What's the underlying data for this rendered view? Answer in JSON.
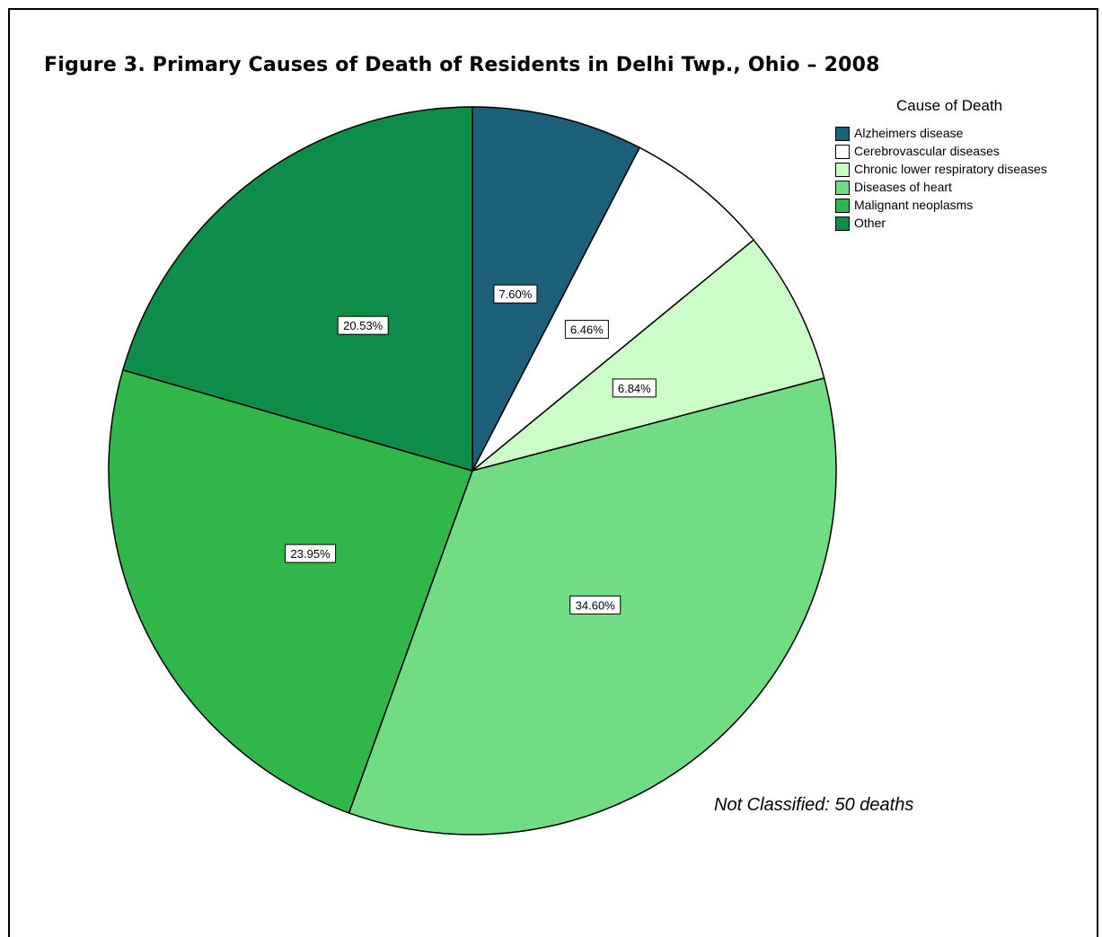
{
  "chart_data": {
    "type": "pie",
    "title": "Figure 3.  Primary Causes of Death of Residents in Delhi Twp., Ohio – 2008",
    "legend_title": "Cause of Death",
    "legend_position": "top-right",
    "slices": [
      {
        "name": "Alzheimers disease",
        "value": 7.6,
        "label": "7.60%",
        "color": "#1c5f78"
      },
      {
        "name": "Cerebrovascular diseases",
        "value": 6.46,
        "label": "6.46%",
        "color": "#ffffff"
      },
      {
        "name": "Chronic lower respiratory diseases",
        "value": 6.84,
        "label": "6.84%",
        "color": "#ccfcc8"
      },
      {
        "name": "Diseases of heart",
        "value": 34.6,
        "label": "34.60%",
        "color": "#72dc84"
      },
      {
        "name": "Malignant neoplasms",
        "value": 23.95,
        "label": "23.95%",
        "color": "#31b64a"
      },
      {
        "name": "Other",
        "value": 20.53,
        "label": "20.53%",
        "color": "#0e8c49"
      }
    ],
    "annotation": "Not Classified: 50 deaths"
  }
}
